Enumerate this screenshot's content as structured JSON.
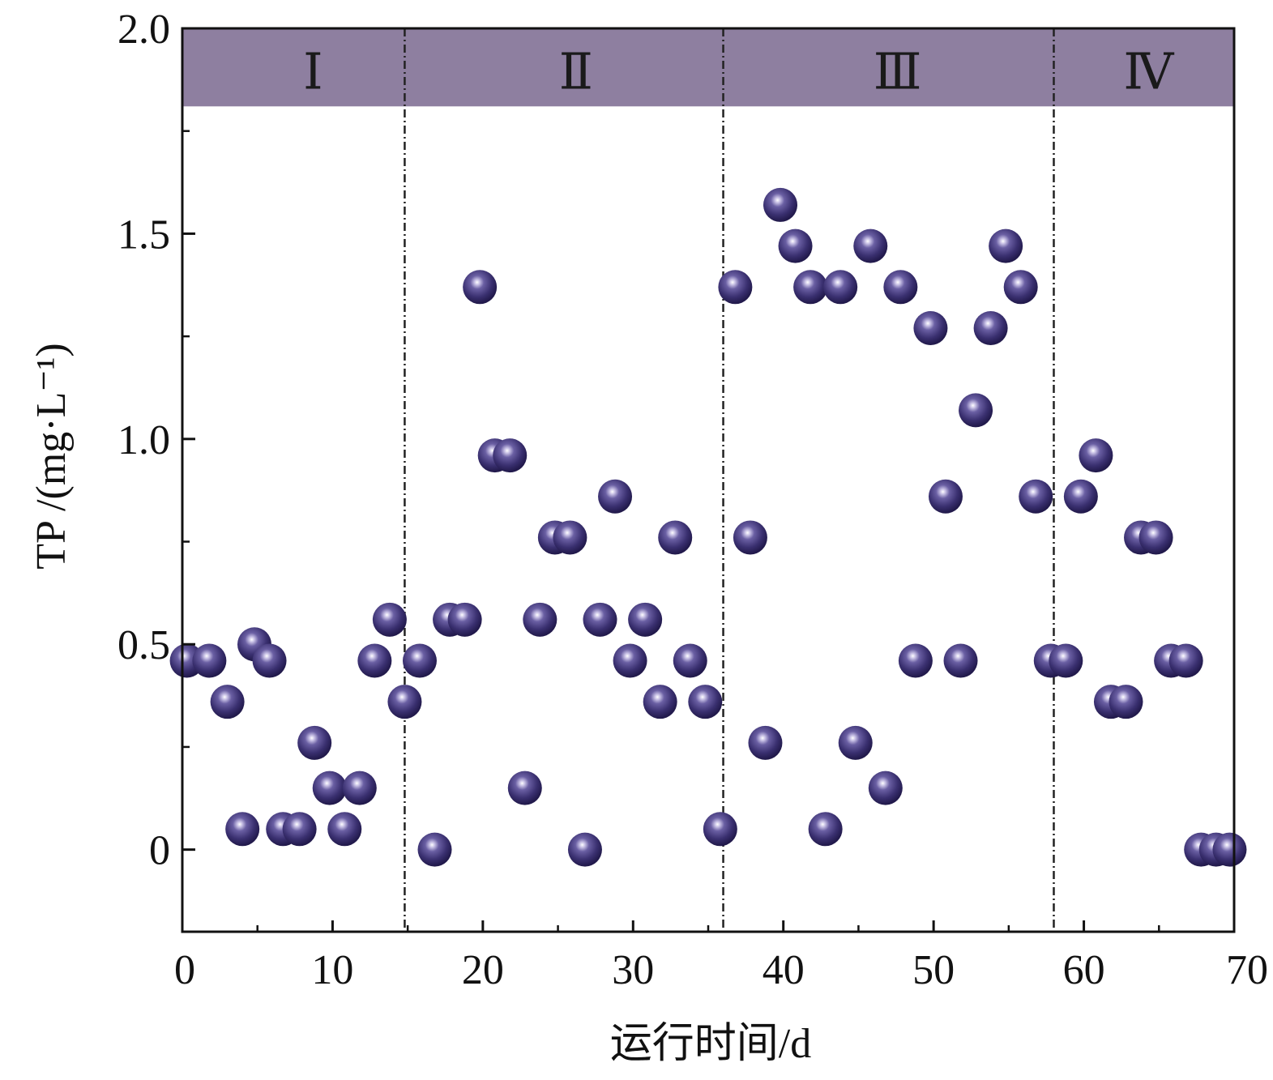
{
  "chart_data": {
    "type": "scatter",
    "xlabel": "运行时间/d",
    "ylabel": "TP /(mg·L⁻¹)",
    "xlim": [
      0,
      70
    ],
    "ylim": [
      -0.2,
      2.0
    ],
    "xticks": [
      0,
      10,
      20,
      30,
      40,
      50,
      60,
      70
    ],
    "yticks": [
      0,
      0.5,
      1.0,
      1.5,
      2.0
    ],
    "xtick_labels": [
      "0",
      "10",
      "20",
      "30",
      "40",
      "50",
      "60",
      "70"
    ],
    "ytick_labels": [
      "0",
      "0.5",
      "1.0",
      "1.5",
      "2.0"
    ],
    "grid": false,
    "phase_band": {
      "y_range": [
        1.81,
        2.0
      ],
      "color": "#8e7fa0"
    },
    "phase_dividers": [
      14.8,
      36.0,
      58.0
    ],
    "phases": [
      {
        "label": "Ⅰ",
        "x": 8.7
      },
      {
        "label": "Ⅱ",
        "x": 26.2
      },
      {
        "label": "Ⅲ",
        "x": 47.6
      },
      {
        "label": "Ⅳ",
        "x": 64.3
      }
    ],
    "marker_color": "#3d3470",
    "series": [
      {
        "x": [
          0.3,
          1.8,
          3.0,
          4.0,
          4.8,
          5.8,
          6.7,
          7.8,
          8.8,
          9.8,
          10.8,
          11.8,
          12.8,
          13.8,
          14.8,
          15.8,
          16.8,
          17.8,
          18.8,
          19.8,
          20.8,
          21.8,
          22.8,
          23.8,
          24.8,
          25.8,
          26.8,
          27.8,
          28.8,
          29.8,
          30.8,
          31.8,
          32.8,
          33.8,
          34.8,
          35.8,
          36.8,
          37.8,
          38.8,
          39.8,
          40.8,
          41.8,
          42.8,
          43.8,
          44.8,
          45.8,
          46.8,
          47.8,
          48.8,
          49.8,
          50.8,
          51.8,
          52.8,
          53.8,
          54.8,
          55.8,
          56.8,
          57.8,
          58.8,
          59.8,
          60.8,
          61.8,
          62.8,
          63.8,
          64.8,
          65.8,
          66.8,
          67.8,
          68.8,
          69.7
        ],
        "y": [
          0.46,
          0.46,
          0.36,
          0.05,
          0.5,
          0.46,
          0.05,
          0.05,
          0.26,
          0.15,
          0.05,
          0.15,
          0.46,
          0.56,
          0.36,
          0.46,
          0.0,
          0.56,
          0.56,
          1.37,
          0.96,
          0.96,
          0.15,
          0.56,
          0.76,
          0.76,
          0.0,
          0.56,
          0.86,
          0.46,
          0.56,
          0.36,
          0.76,
          0.46,
          0.36,
          0.05,
          1.37,
          0.76,
          0.26,
          1.57,
          1.47,
          1.37,
          0.05,
          1.37,
          0.26,
          1.47,
          0.15,
          1.37,
          0.46,
          1.27,
          0.86,
          0.46,
          1.07,
          1.27,
          1.47,
          1.37,
          0.86,
          0.46,
          0.46,
          0.86,
          0.96,
          0.36,
          0.36,
          0.76,
          0.76,
          0.46,
          0.46,
          0.0,
          0.0,
          0.0
        ]
      }
    ]
  }
}
